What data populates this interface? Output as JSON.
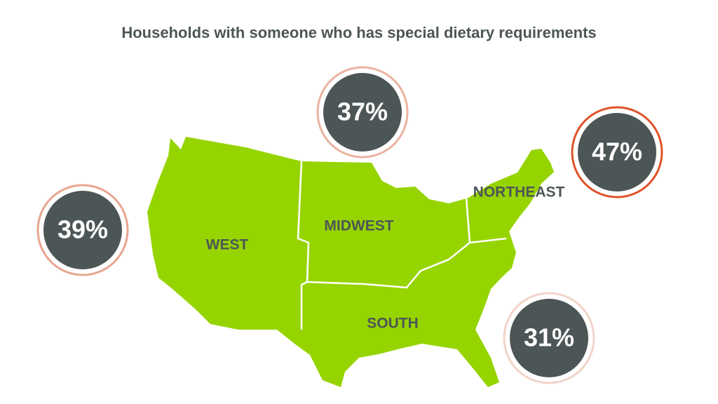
{
  "title": "Households with someone who has special dietary requirements",
  "regions": [
    {
      "name": "WEST",
      "value": "39%"
    },
    {
      "name": "MIDWEST",
      "value": "37%"
    },
    {
      "name": "NORTHEAST",
      "value": "47%"
    },
    {
      "name": "SOUTH",
      "value": "31%"
    }
  ]
}
